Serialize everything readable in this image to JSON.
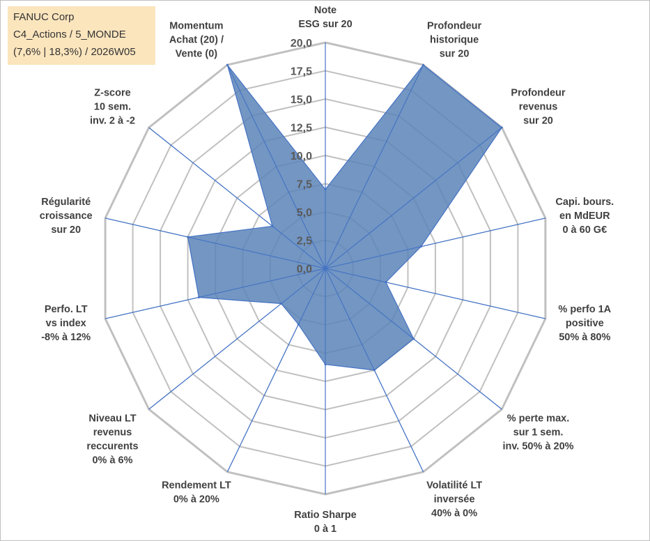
{
  "info": {
    "line1": "FANUC Corp",
    "line2": "C4_Actions / 5_MONDE",
    "line3": "(7,6% | 18,3%) / 2026W05"
  },
  "colors": {
    "fill": "#5b84b9",
    "stroke": "#4472c4",
    "grid": "#c0c0c0",
    "spoke": "#4472c4",
    "info_bg": "#fbe5bd"
  },
  "chart_data": {
    "type": "radar",
    "title": "",
    "rmin": 0,
    "rmax": 20,
    "tick_step": 2.5,
    "tick_labels": [
      "0,0",
      "2,5",
      "5,0",
      "7,5",
      "10,0",
      "12,5",
      "15,0",
      "17,5",
      "20,0"
    ],
    "axes": [
      {
        "label": [
          "Note",
          "ESG sur 20"
        ],
        "value": 7.0
      },
      {
        "label": [
          "Profondeur",
          "historique",
          "sur 20"
        ],
        "value": 20.0
      },
      {
        "label": [
          "Profondeur",
          "revenus",
          "sur 20"
        ],
        "value": 20.0
      },
      {
        "label": [
          "Capi. bours.",
          "en MdEUR",
          "0 à 60 G€"
        ],
        "value": 8.7
      },
      {
        "label": [
          "% perfo 1A",
          "positive",
          "50% à 80%"
        ],
        "value": 5.5
      },
      {
        "label": [
          "% perte max.",
          "sur 1 sem.",
          "inv. 50% à 20%"
        ],
        "value": 10.0
      },
      {
        "label": [
          "Volatilité LT",
          "inversée",
          "40% à 0%"
        ],
        "value": 10.0
      },
      {
        "label": [
          "Ratio Sharpe",
          "0 à 1"
        ],
        "value": 8.5
      },
      {
        "label": [
          "Rendement LT",
          "0% à 20%"
        ],
        "value": 5.5
      },
      {
        "label": [
          "Niveau LT",
          "revenus",
          "reccurents",
          "0% à 6%"
        ],
        "value": 5.0
      },
      {
        "label": [
          "Perfo. LT",
          "vs index",
          "-8% à 12%"
        ],
        "value": 11.5
      },
      {
        "label": [
          "Régularité",
          "croissance",
          "sur 20"
        ],
        "value": 12.5
      },
      {
        "label": [
          "Z-score",
          "10 sem.",
          "inv. 2 à -2"
        ],
        "value": 6.0
      },
      {
        "label": [
          "Momentum",
          "Achat (20) /",
          "Vente (0)"
        ],
        "value": 20.0
      }
    ]
  }
}
